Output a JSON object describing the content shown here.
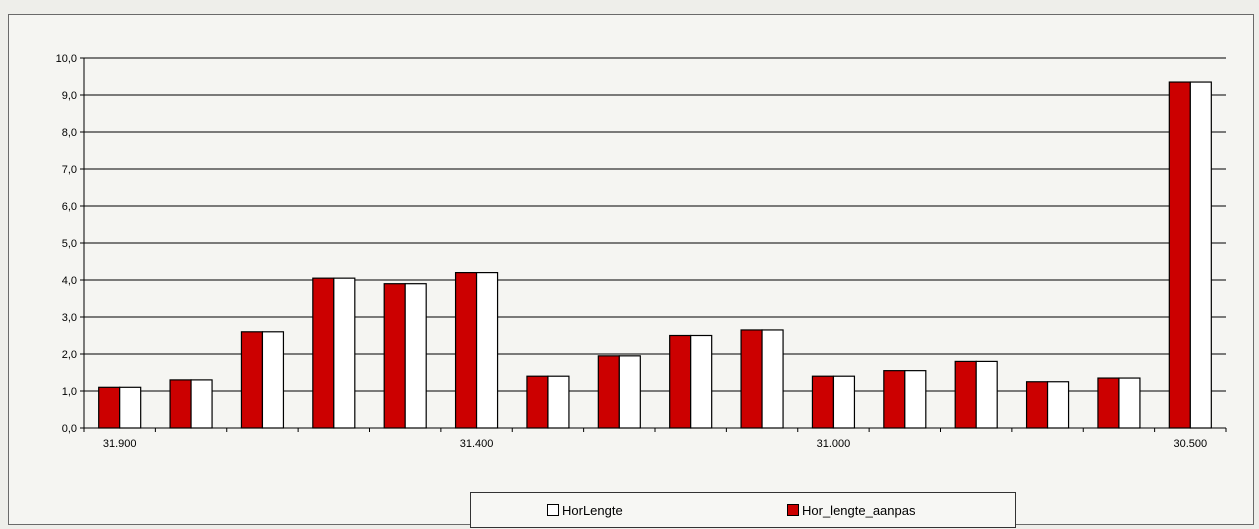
{
  "chart_data": {
    "type": "bar",
    "ylim": [
      0,
      10
    ],
    "y_ticks": [
      "0,0",
      "1,0",
      "2,0",
      "3,0",
      "4,0",
      "5,0",
      "6,0",
      "7,0",
      "8,0",
      "9,0",
      "10,0"
    ],
    "x_tick_labels": [
      "31.900",
      "",
      "",
      "",
      "",
      "31.400",
      "",
      "",
      "",
      "",
      "31.000",
      "",
      "",
      "",
      "",
      "30.500"
    ],
    "grid": true,
    "legend": "bottom-center",
    "series": [
      {
        "name": "Hor_lengte_aanpas",
        "color": "#cc0000",
        "values": [
          1.1,
          1.3,
          2.6,
          4.05,
          3.9,
          4.2,
          1.4,
          1.95,
          2.5,
          2.65,
          1.4,
          1.55,
          1.8,
          1.25,
          1.35,
          9.35
        ]
      },
      {
        "name": "HorLengte",
        "color": "#ffffff",
        "values": [
          1.1,
          1.3,
          2.6,
          4.05,
          3.9,
          4.2,
          1.4,
          1.95,
          2.5,
          2.65,
          1.4,
          1.55,
          1.8,
          1.25,
          1.35,
          9.35
        ]
      }
    ]
  },
  "legend": {
    "item1_label": "HorLengte",
    "item2_label": "Hor_lengte_aanpas"
  }
}
